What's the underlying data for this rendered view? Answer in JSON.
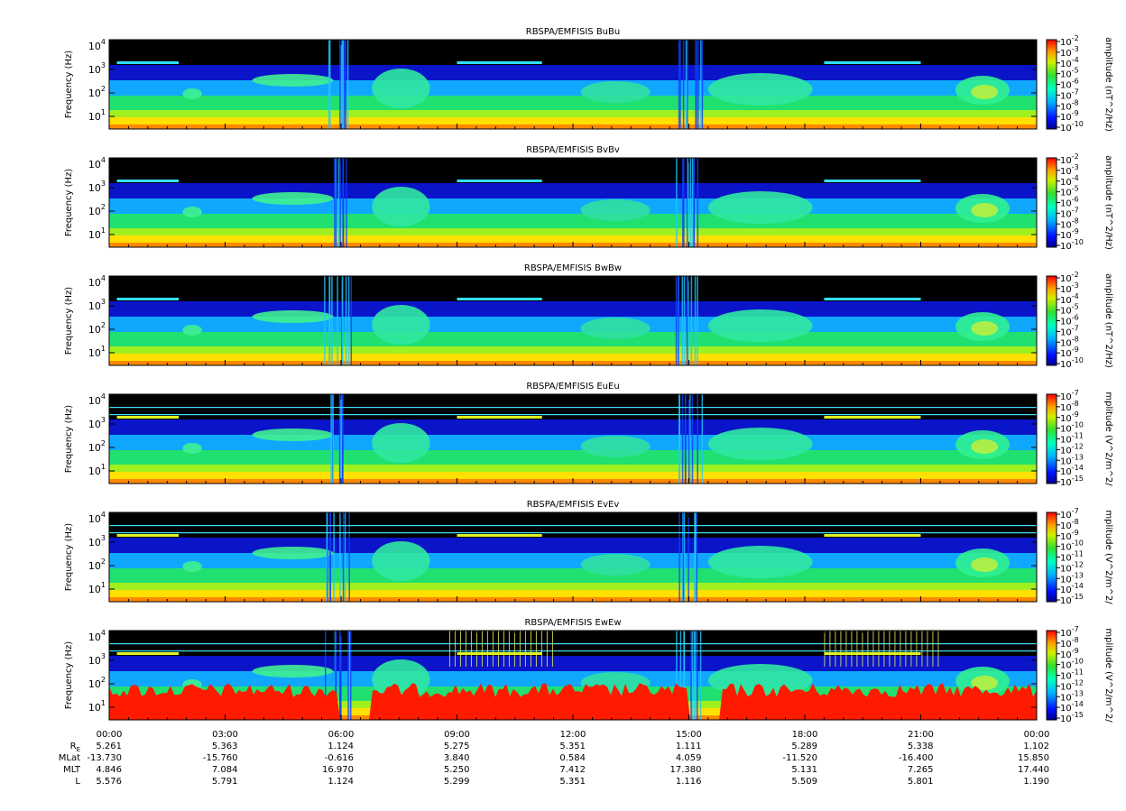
{
  "chart_data": {
    "type": "heatmap",
    "ylabel": "Frequency (Hz)",
    "y_scale": "log",
    "y_ticks": [
      "10",
      "10",
      "10",
      "10"
    ],
    "y_tick_exponents": [
      "1",
      "2",
      "3",
      "4"
    ],
    "x_ticks": [
      "00:00",
      "03:00",
      "06:00",
      "09:00",
      "12:00",
      "15:00",
      "18:00",
      "21:00",
      "00:00"
    ],
    "panels": [
      {
        "title": "RBSPA/EMFISIS  BuBu",
        "colorbar_label": "amplitude (nT^2/Hz)",
        "color_ticks": [
          "10",
          "10",
          "10",
          "10",
          "10",
          "10",
          "10",
          "10",
          "10"
        ],
        "color_tick_exponents": [
          "-2",
          "-3",
          "-4",
          "-5",
          "-6",
          "-7",
          "-8",
          "-9",
          "-10"
        ]
      },
      {
        "title": "RBSPA/EMFISIS  BvBv",
        "colorbar_label": "amplitude (nT^2/Hz)",
        "color_ticks": [
          "10",
          "10",
          "10",
          "10",
          "10",
          "10",
          "10",
          "10",
          "10"
        ],
        "color_tick_exponents": [
          "-2",
          "-3",
          "-4",
          "-5",
          "-6",
          "-7",
          "-8",
          "-9",
          "-10"
        ]
      },
      {
        "title": "RBSPA/EMFISIS  BwBw",
        "colorbar_label": "amplitude (nT^2/Hz)",
        "color_ticks": [
          "10",
          "10",
          "10",
          "10",
          "10",
          "10",
          "10",
          "10",
          "10"
        ],
        "color_tick_exponents": [
          "-2",
          "-3",
          "-4",
          "-5",
          "-6",
          "-7",
          "-8",
          "-9",
          "-10"
        ]
      },
      {
        "title": "RBSPA/EMFISIS  EuEu",
        "colorbar_label": "mplitude (V^2/m^2/",
        "color_ticks": [
          "10",
          "10",
          "10",
          "10",
          "10",
          "10",
          "10",
          "10",
          "10"
        ],
        "color_tick_exponents": [
          "-7",
          "-8",
          "-9",
          "-10",
          "-11",
          "-12",
          "-13",
          "-14",
          "-15"
        ]
      },
      {
        "title": "RBSPA/EMFISIS  EvEv",
        "colorbar_label": "mplitude (V^2/m^2/",
        "color_ticks": [
          "10",
          "10",
          "10",
          "10",
          "10",
          "10",
          "10",
          "10",
          "10"
        ],
        "color_tick_exponents": [
          "-7",
          "-8",
          "-9",
          "-10",
          "-11",
          "-12",
          "-13",
          "-14",
          "-15"
        ]
      },
      {
        "title": "RBSPA/EMFISIS  EwEw",
        "colorbar_label": "mplitude (V^2/m^2/",
        "color_ticks": [
          "10",
          "10",
          "10",
          "10",
          "10",
          "10",
          "10",
          "10",
          "10"
        ],
        "color_tick_exponents": [
          "-7",
          "-8",
          "-9",
          "-10",
          "-11",
          "-12",
          "-13",
          "-14",
          "-15"
        ]
      }
    ],
    "ephemeris": {
      "labels": [
        "R",
        "MLat",
        "MLT",
        "L"
      ],
      "re_subscript": "E",
      "rows": [
        [
          "5.261",
          "5.363",
          "1.124",
          "5.275",
          "5.351",
          "1.111",
          "5.289",
          "5.338",
          "1.102"
        ],
        [
          "-13.730",
          "-15.760",
          "-0.616",
          "3.840",
          "0.584",
          "4.059",
          "-11.520",
          "-16.400",
          "15.850"
        ],
        [
          "4.846",
          "7.084",
          "16.970",
          "5.250",
          "7.412",
          "17.380",
          "5.131",
          "7.265",
          "17.440"
        ],
        [
          "5.576",
          "5.791",
          "1.124",
          "5.299",
          "5.351",
          "1.116",
          "5.509",
          "5.801",
          "1.190"
        ]
      ]
    }
  },
  "colors": {
    "background": "#000000",
    "deep_blue": "#0000aa",
    "blue": "#1f3cff",
    "cyan": "#18d8ff",
    "green": "#2edc4a",
    "yellow": "#ffe600",
    "red": "#ff1a00"
  }
}
